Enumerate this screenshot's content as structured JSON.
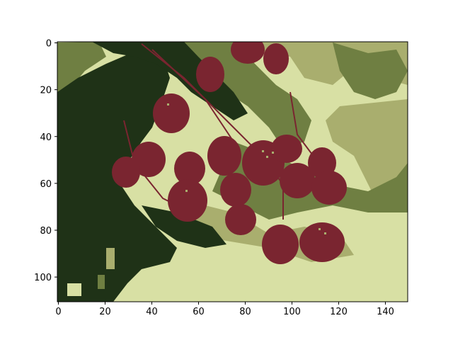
{
  "figure": {
    "x_ticks": [
      "0",
      "20",
      "40",
      "60",
      "80",
      "100",
      "120",
      "140"
    ],
    "y_ticks": [
      "0",
      "20",
      "40",
      "60",
      "80",
      "100"
    ],
    "x_range": [
      0,
      150
    ],
    "y_range": [
      0,
      111
    ],
    "palette": {
      "dark_green": "#1f3217",
      "olive": "#6f7f42",
      "khaki": "#a9ae6e",
      "light_yellow": "#d8e0a4",
      "berry_red": "#7a2530"
    },
    "image_subject": "berry-cluster-on-branch"
  }
}
